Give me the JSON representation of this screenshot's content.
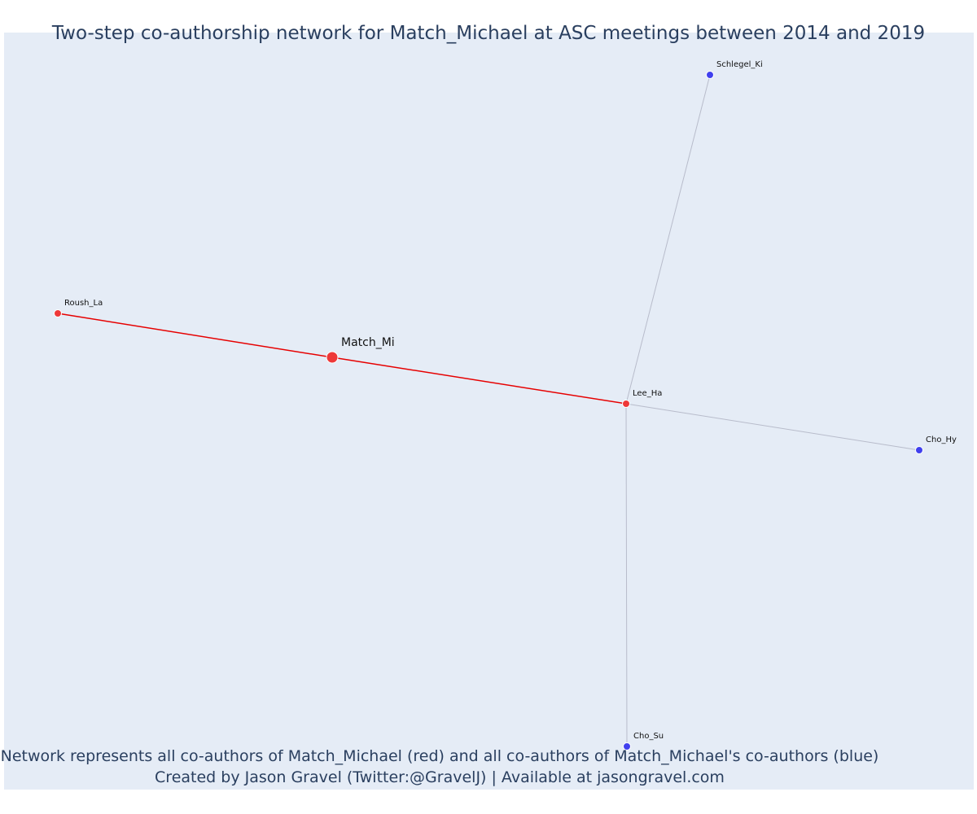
{
  "title": "Two-step co-authorship network for Match_Michael at ASC meetings between 2014 and 2019",
  "caption_line1": "Network represents all co-authors of Match_Michael (red) and all co-authors of Match_Michael's co-authors (blue)",
  "caption_line2": "Created by Jason Gravel (Twitter:@GravelJ) | Available at jasongravel.com",
  "colors": {
    "background": "#e5ecf6",
    "red_node": "#ee3838",
    "blue_node": "#4040ee",
    "red_edge": "#e60000",
    "grey_edge": "#b8bccb",
    "text": "#2a3f5f"
  },
  "nodes": [
    {
      "id": "Match_Mi",
      "label": "Match_Mi",
      "group": "focal"
    },
    {
      "id": "Roush_La",
      "label": "Roush_La",
      "group": "coauthor"
    },
    {
      "id": "Lee_Ha",
      "label": "Lee_Ha",
      "group": "coauthor"
    },
    {
      "id": "Schlegel_Ki",
      "label": "Schlegel_Ki",
      "group": "second_step"
    },
    {
      "id": "Cho_Hy",
      "label": "Cho_Hy",
      "group": "second_step"
    },
    {
      "id": "Cho_Su",
      "label": "Cho_Su",
      "group": "second_step"
    }
  ],
  "edges": [
    {
      "source": "Roush_La",
      "target": "Match_Mi",
      "type": "direct"
    },
    {
      "source": "Match_Mi",
      "target": "Lee_Ha",
      "type": "direct"
    },
    {
      "source": "Lee_Ha",
      "target": "Schlegel_Ki",
      "type": "indirect"
    },
    {
      "source": "Lee_Ha",
      "target": "Cho_Hy",
      "type": "indirect"
    },
    {
      "source": "Lee_Ha",
      "target": "Cho_Su",
      "type": "indirect"
    }
  ]
}
